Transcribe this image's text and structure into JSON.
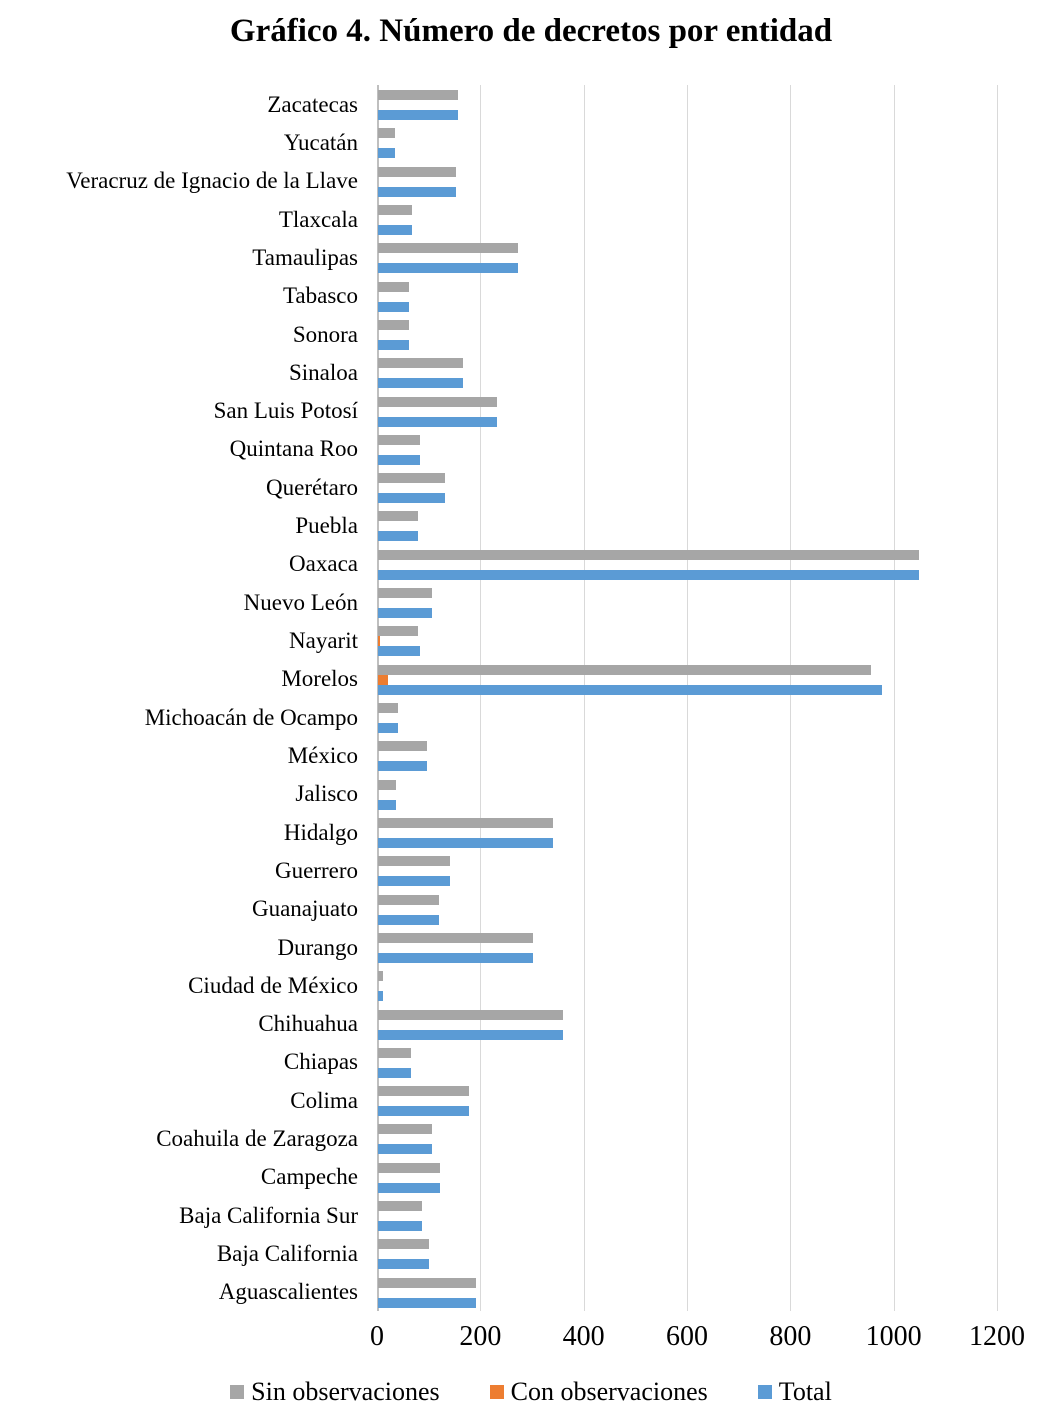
{
  "chart_data": {
    "type": "bar",
    "orientation": "horizontal",
    "title": "Gráfico 4. Número de decretos por entidad",
    "xlabel": "",
    "ylabel": "",
    "xlim": [
      0,
      1200
    ],
    "x_ticks": [
      0,
      200,
      400,
      600,
      800,
      1000,
      1200
    ],
    "grid": true,
    "legend_position": "bottom",
    "categories": [
      "Zacatecas",
      "Yucatán",
      "Veracruz de Ignacio de la Llave",
      "Tlaxcala",
      "Tamaulipas",
      "Tabasco",
      "Sonora",
      "Sinaloa",
      "San Luis Potosí",
      "Quintana Roo",
      "Querétaro",
      "Puebla",
      "Oaxaca",
      "Nuevo León",
      "Nayarit",
      "Morelos",
      "Michoacán de Ocampo",
      "México",
      "Jalisco",
      "Hidalgo",
      "Guerrero",
      "Guanajuato",
      "Durango",
      "Ciudad de México",
      "Chihuahua",
      "Chiapas",
      "Colima",
      "Coahuila de Zaragoza",
      "Campeche",
      "Baja California Sur",
      "Baja California",
      "Aguascalientes"
    ],
    "series": [
      {
        "name": "Sin observaciones",
        "key": "sin-observaciones",
        "color": "#a6a6a6",
        "values": [
          155,
          33,
          150,
          65,
          270,
          60,
          60,
          165,
          230,
          82,
          130,
          78,
          1048,
          104,
          78,
          955,
          38,
          95,
          34,
          338,
          140,
          119,
          300,
          9,
          358,
          63,
          176,
          105,
          120,
          85,
          98,
          190
        ]
      },
      {
        "name": "Con observaciones",
        "key": "con-observaciones",
        "color": "#ed7d31",
        "values": [
          0,
          0,
          0,
          0,
          0,
          0,
          0,
          0,
          0,
          0,
          0,
          0,
          0,
          0,
          4,
          20,
          0,
          0,
          0,
          0,
          0,
          0,
          0,
          0,
          0,
          0,
          0,
          0,
          0,
          0,
          0,
          0
        ]
      },
      {
        "name": "Total",
        "key": "total",
        "color": "#5b9bd5",
        "values": [
          155,
          33,
          150,
          65,
          270,
          60,
          60,
          165,
          230,
          82,
          130,
          78,
          1048,
          104,
          82,
          975,
          38,
          95,
          34,
          338,
          140,
          119,
          300,
          9,
          358,
          63,
          176,
          105,
          120,
          85,
          98,
          190
        ]
      }
    ],
    "colors": {
      "gridline": "#d9d9d9",
      "axis_line": "#bfbfbf",
      "text": "#000000"
    }
  }
}
